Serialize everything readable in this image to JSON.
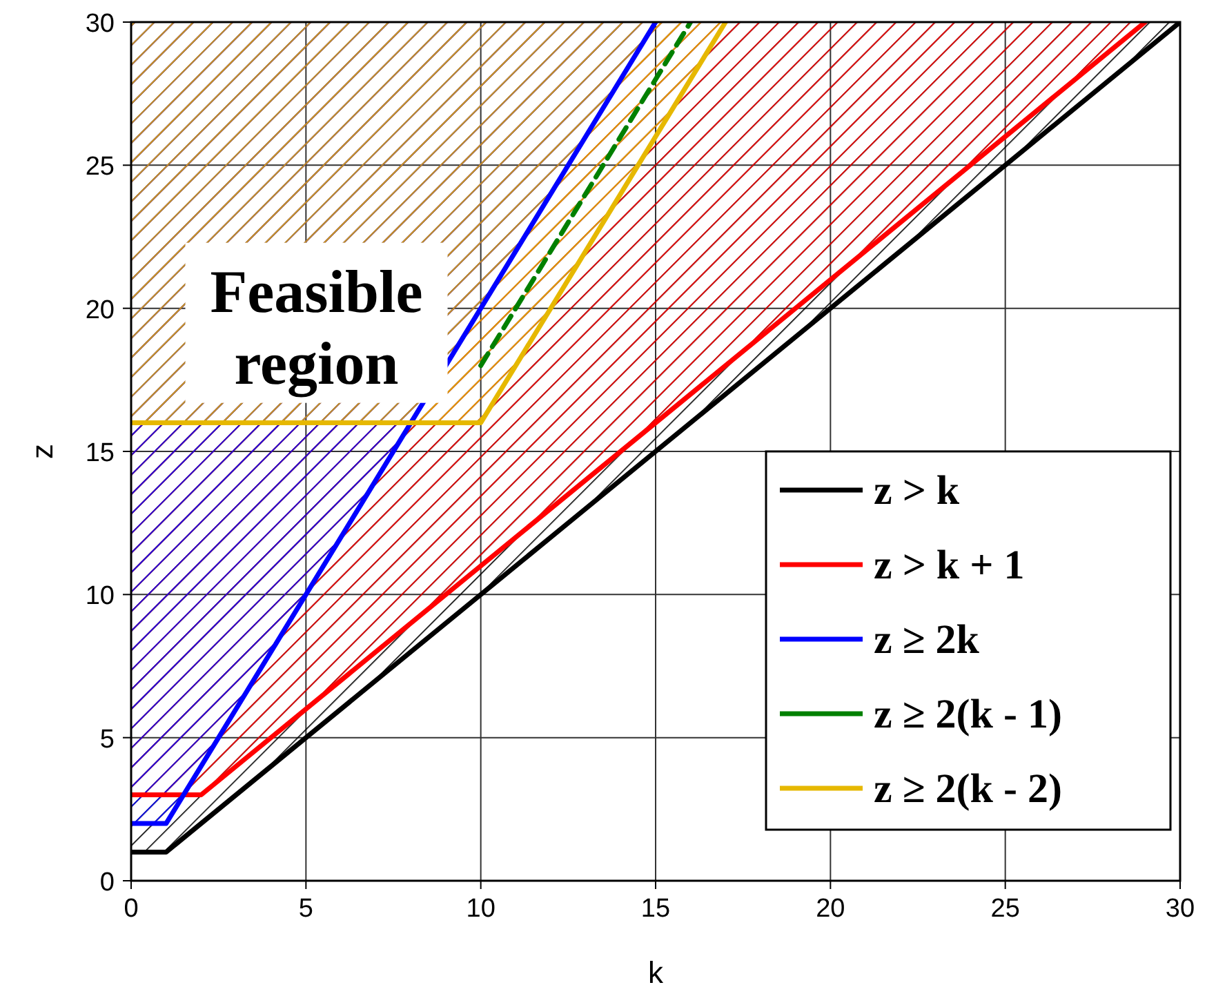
{
  "chart_data": {
    "type": "line",
    "xlabel": "k",
    "ylabel": "z",
    "xlim": [
      0,
      30
    ],
    "ylim": [
      0,
      30
    ],
    "xticks": [
      0,
      5,
      10,
      15,
      20,
      25,
      30
    ],
    "yticks": [
      0,
      5,
      10,
      15,
      20,
      25,
      30
    ],
    "grid": true,
    "legend": "bottom right",
    "marker": "none",
    "annotations": [
      "Feasible region"
    ],
    "series": [
      {
        "name": "z > k",
        "color": "#000000",
        "x": [
          0,
          1,
          30
        ],
        "values": [
          1,
          1,
          30
        ],
        "lower": [
          1,
          1,
          30
        ],
        "upper": [
          30,
          30,
          30
        ]
      },
      {
        "name": "z > k + 1",
        "color": "#ff0000",
        "x": [
          0,
          2,
          29
        ],
        "values": [
          3,
          3,
          30
        ],
        "lower": [
          3,
          3,
          30
        ],
        "upper": [
          30,
          30,
          30
        ]
      },
      {
        "name": "z ≥ 2k",
        "color": "#0000ff",
        "x": [
          0,
          1,
          15
        ],
        "values": [
          2,
          2,
          30
        ],
        "lower": [
          2,
          2,
          30
        ],
        "upper": [
          30,
          30,
          30
        ]
      },
      {
        "name": "z ≥ 2(k - 1)",
        "color": "#008000",
        "x": [
          10,
          16
        ],
        "values": [
          18,
          30
        ],
        "line_style": "dashed"
      },
      {
        "name": "z ≥ 2(k - 2)",
        "color": "#e6b800",
        "x": [
          0,
          10,
          17
        ],
        "values": [
          16,
          16,
          30
        ],
        "lower": [
          16,
          16,
          30
        ],
        "upper": [
          30,
          30,
          30
        ]
      }
    ]
  }
}
